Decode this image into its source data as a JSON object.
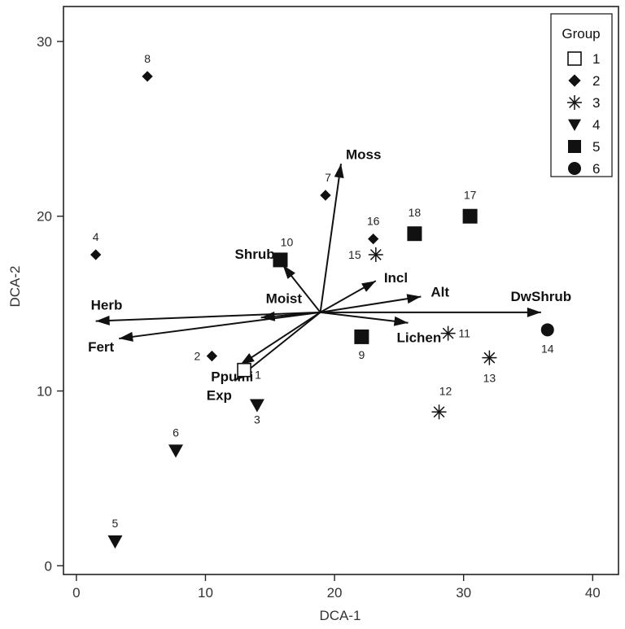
{
  "chart_data": {
    "type": "scatter",
    "xlabel": "DCA-1",
    "ylabel": "DCA-2",
    "xlim": [
      -1,
      42
    ],
    "ylim": [
      -0.5,
      32
    ],
    "xticks": [
      0,
      10,
      20,
      30,
      40
    ],
    "yticks": [
      0,
      10,
      20,
      30
    ],
    "grid": false,
    "legend": {
      "title": "Group",
      "placement": "top-right",
      "entries": [
        {
          "label": "1",
          "marker": "open-square"
        },
        {
          "label": "2",
          "marker": "diamond"
        },
        {
          "label": "3",
          "marker": "asterisk"
        },
        {
          "label": "4",
          "marker": "triangle-down"
        },
        {
          "label": "5",
          "marker": "square"
        },
        {
          "label": "6",
          "marker": "circle"
        }
      ]
    },
    "series": [
      {
        "name": "1",
        "marker": "open-square",
        "points": [
          {
            "label": "1",
            "x": 13,
            "y": 11.2
          }
        ]
      },
      {
        "name": "2",
        "marker": "diamond",
        "points": [
          {
            "label": "2",
            "x": 10.5,
            "y": 12
          },
          {
            "label": "4",
            "x": 1.5,
            "y": 17.8
          },
          {
            "label": "7",
            "x": 19.3,
            "y": 21.2
          },
          {
            "label": "8",
            "x": 5.5,
            "y": 28
          },
          {
            "label": "16",
            "x": 23,
            "y": 18.7
          }
        ]
      },
      {
        "name": "3",
        "marker": "asterisk",
        "points": [
          {
            "label": "11",
            "x": 28.8,
            "y": 13.3
          },
          {
            "label": "12",
            "x": 28.1,
            "y": 8.8
          },
          {
            "label": "13",
            "x": 32,
            "y": 11.9
          },
          {
            "label": "15",
            "x": 23.2,
            "y": 17.8
          }
        ]
      },
      {
        "name": "4",
        "marker": "triangle-down",
        "points": [
          {
            "label": "3",
            "x": 14,
            "y": 9.2
          },
          {
            "label": "5",
            "x": 3,
            "y": 1.4
          },
          {
            "label": "6",
            "x": 7.7,
            "y": 6.6
          }
        ]
      },
      {
        "name": "5",
        "marker": "square",
        "points": [
          {
            "label": "9",
            "x": 22.1,
            "y": 13.1
          },
          {
            "label": "10",
            "x": 15.8,
            "y": 17.5
          },
          {
            "label": "17",
            "x": 30.5,
            "y": 20
          },
          {
            "label": "18",
            "x": 26.2,
            "y": 19
          }
        ]
      },
      {
        "name": "6",
        "marker": "circle",
        "points": [
          {
            "label": "14",
            "x": 36.5,
            "y": 13.5
          }
        ]
      }
    ],
    "vectors": {
      "origin": [
        18.9,
        14.5
      ],
      "items": [
        {
          "label": "Moss",
          "x": 20.5,
          "y": 23
        },
        {
          "label": "Shrub",
          "x": 16,
          "y": 17.2
        },
        {
          "label": "Incl",
          "x": 23.2,
          "y": 16.3
        },
        {
          "label": "Alt",
          "x": 26.7,
          "y": 15.4
        },
        {
          "label": "DwShrub",
          "x": 36,
          "y": 14.5
        },
        {
          "label": "Lichen",
          "x": 25.7,
          "y": 13.9
        },
        {
          "label": "Moist",
          "x": 14.3,
          "y": 14.2
        },
        {
          "label": "Herb",
          "x": 1.5,
          "y": 14
        },
        {
          "label": "Fert",
          "x": 3.3,
          "y": 13
        },
        {
          "label": "Ppumi",
          "x": 12.7,
          "y": 11.5
        },
        {
          "label": "Exp",
          "x": 12.3,
          "y": 10.6
        }
      ]
    }
  }
}
